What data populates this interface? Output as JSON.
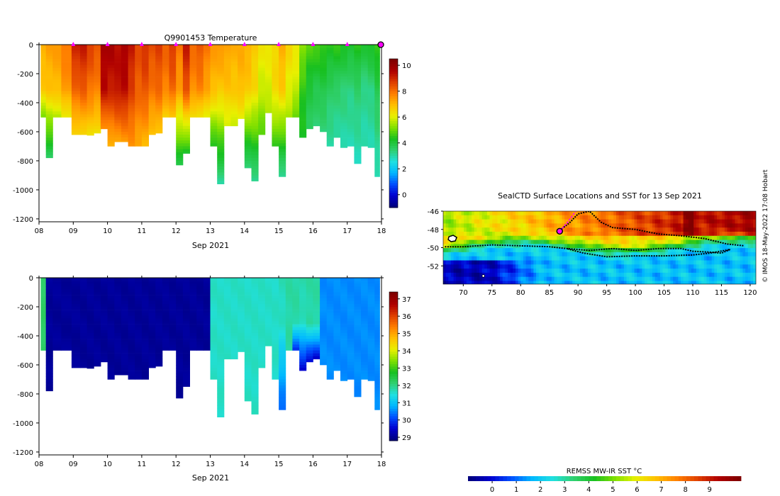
{
  "page": {
    "credit": "© IMOS 18-May-2022 17:08 Hobart"
  },
  "colors": {
    "jet": [
      "#00007f",
      "#0000d0",
      "#0050ff",
      "#00b8ff",
      "#20e0e0",
      "#30d070",
      "#18c020",
      "#80e000",
      "#e8f000",
      "#ffc000",
      "#ff8000",
      "#e04000",
      "#b00000",
      "#800000"
    ],
    "highlight": "#ff00ff",
    "land": "#ffffff"
  },
  "chart_data": [
    {
      "id": "temperature",
      "type": "heatmap",
      "title": "Q9901453  Temperature",
      "xlabel": "Sep 2021",
      "ylabel": "",
      "x_ticks": [
        "08",
        "09",
        "10",
        "11",
        "12",
        "13",
        "14",
        "15",
        "16",
        "17",
        "18"
      ],
      "y_ticks": [
        "0",
        "-200",
        "-400",
        "-600",
        "-800",
        "-1000",
        "-1200"
      ],
      "xlim": [
        8,
        18
      ],
      "ylim": [
        -1220,
        0
      ],
      "colorbar": {
        "ticks": [
          "0",
          "2",
          "4",
          "6",
          "8",
          "10"
        ],
        "range": [
          -1,
          10.5
        ]
      },
      "profile_markers_days": [
        9,
        10,
        11,
        12,
        13,
        14,
        15,
        16,
        17
      ],
      "current_marker_day": 18,
      "profiles": [
        {
          "day": 8.1,
          "bottom": -500,
          "surf": 7.2,
          "mid": 6.8,
          "deep": 5
        },
        {
          "day": 8.3,
          "bottom": -780,
          "surf": 7.4,
          "mid": 6.9,
          "deep": 3.5
        },
        {
          "day": 8.5,
          "bottom": -500,
          "surf": 7.5,
          "mid": 7,
          "deep": 5.5
        },
        {
          "day": 8.8,
          "bottom": -500,
          "surf": 8,
          "mid": 7.5,
          "deep": 6
        },
        {
          "day": 9.1,
          "bottom": -620,
          "surf": 9.2,
          "mid": 8.2,
          "deep": 6.5
        },
        {
          "day": 9.3,
          "bottom": -620,
          "surf": 9.3,
          "mid": 8.4,
          "deep": 6.5
        },
        {
          "day": 9.5,
          "bottom": -625,
          "surf": 8.8,
          "mid": 8,
          "deep": 6.4
        },
        {
          "day": 9.7,
          "bottom": -610,
          "surf": 8.5,
          "mid": 7.8,
          "deep": 6.3
        },
        {
          "day": 9.9,
          "bottom": -580,
          "surf": 9.8,
          "mid": 9.5,
          "deep": 7.5
        },
        {
          "day": 10.1,
          "bottom": -700,
          "surf": 9.8,
          "mid": 9.2,
          "deep": 7
        },
        {
          "day": 10.3,
          "bottom": -670,
          "surf": 9.5,
          "mid": 9.4,
          "deep": 7.3
        },
        {
          "day": 10.5,
          "bottom": -670,
          "surf": 9.8,
          "mid": 9.5,
          "deep": 7.4
        },
        {
          "day": 10.7,
          "bottom": -700,
          "surf": 9.3,
          "mid": 8.8,
          "deep": 7.5
        },
        {
          "day": 10.9,
          "bottom": -700,
          "surf": 8.6,
          "mid": 8.3,
          "deep": 7.2
        },
        {
          "day": 11.1,
          "bottom": -700,
          "surf": 9,
          "mid": 8.5,
          "deep": 7
        },
        {
          "day": 11.3,
          "bottom": -620,
          "surf": 8.6,
          "mid": 8,
          "deep": 6.8
        },
        {
          "day": 11.5,
          "bottom": -610,
          "surf": 8.8,
          "mid": 8.2,
          "deep": 6.8
        },
        {
          "day": 11.7,
          "bottom": -500,
          "surf": 8.3,
          "mid": 7.8,
          "deep": 6.5
        },
        {
          "day": 11.9,
          "bottom": -500,
          "surf": 8.9,
          "mid": 8.2,
          "deep": 6.7
        },
        {
          "day": 12.1,
          "bottom": -830,
          "surf": 8,
          "mid": 7.4,
          "deep": 3.8
        },
        {
          "day": 12.3,
          "bottom": -750,
          "surf": 9.3,
          "mid": 8.5,
          "deep": 4
        },
        {
          "day": 12.5,
          "bottom": -500,
          "surf": 8.2,
          "mid": 7.6,
          "deep": 6.3
        },
        {
          "day": 12.7,
          "bottom": -500,
          "surf": 8.5,
          "mid": 7.8,
          "deep": 6.2
        },
        {
          "day": 12.9,
          "bottom": -500,
          "surf": 8,
          "mid": 7.3,
          "deep": 6.1
        },
        {
          "day": 13.1,
          "bottom": -700,
          "surf": 7.5,
          "mid": 7,
          "deep": 4.2
        },
        {
          "day": 13.3,
          "bottom": -960,
          "surf": 7.6,
          "mid": 6.8,
          "deep": 3
        },
        {
          "day": 13.5,
          "bottom": -560,
          "surf": 7.4,
          "mid": 6.9,
          "deep": 5.8
        },
        {
          "day": 13.7,
          "bottom": -560,
          "surf": 7.2,
          "mid": 6.8,
          "deep": 5.8
        },
        {
          "day": 13.9,
          "bottom": -510,
          "surf": 7.3,
          "mid": 7,
          "deep": 6
        },
        {
          "day": 14.1,
          "bottom": -850,
          "surf": 7.2,
          "mid": 6.8,
          "deep": 3.2
        },
        {
          "day": 14.3,
          "bottom": -940,
          "surf": 6.8,
          "mid": 6.5,
          "deep": 3
        },
        {
          "day": 14.5,
          "bottom": -620,
          "surf": 6.3,
          "mid": 5.8,
          "deep": 4.8
        },
        {
          "day": 14.7,
          "bottom": -470,
          "surf": 6.3,
          "mid": 5.9,
          "deep": 5.4
        },
        {
          "day": 14.9,
          "bottom": -700,
          "surf": 6.6,
          "mid": 6.5,
          "deep": 4.5
        },
        {
          "day": 15.1,
          "bottom": -910,
          "surf": 7.2,
          "mid": 6.8,
          "deep": 3
        },
        {
          "day": 15.3,
          "bottom": -500,
          "surf": 6.6,
          "mid": 6,
          "deep": 5.5
        },
        {
          "day": 15.5,
          "bottom": -500,
          "surf": 6.3,
          "mid": 5.8,
          "deep": 4.8
        },
        {
          "day": 15.7,
          "bottom": -640,
          "surf": 5.3,
          "mid": 4.5,
          "deep": 4.2
        },
        {
          "day": 15.9,
          "bottom": -580,
          "surf": 4.8,
          "mid": 4,
          "deep": 3.6
        },
        {
          "day": 16.1,
          "bottom": -560,
          "surf": 4.7,
          "mid": 3.8,
          "deep": 3.4
        },
        {
          "day": 16.3,
          "bottom": -600,
          "surf": 4.6,
          "mid": 3.9,
          "deep": 3.3
        },
        {
          "day": 16.5,
          "bottom": -700,
          "surf": 4.4,
          "mid": 3.6,
          "deep": 3
        },
        {
          "day": 16.7,
          "bottom": -640,
          "surf": 4.5,
          "mid": 3.5,
          "deep": 3
        },
        {
          "day": 16.9,
          "bottom": -710,
          "surf": 4.3,
          "mid": 3.4,
          "deep": 2.9
        },
        {
          "day": 17.1,
          "bottom": -700,
          "surf": 4.2,
          "mid": 3.3,
          "deep": 2.9
        },
        {
          "day": 17.3,
          "bottom": -820,
          "surf": 4.4,
          "mid": 3.5,
          "deep": 2.8
        },
        {
          "day": 17.5,
          "bottom": -700,
          "surf": 4.1,
          "mid": 3.2,
          "deep": 2.9
        },
        {
          "day": 17.7,
          "bottom": -710,
          "surf": 4.3,
          "mid": 3.3,
          "deep": 2.9
        },
        {
          "day": 17.9,
          "bottom": -910,
          "surf": 4.6,
          "mid": 3.8,
          "deep": 2.8
        }
      ]
    },
    {
      "id": "salinity",
      "type": "heatmap",
      "title": "",
      "xlabel": "Sep 2021",
      "ylabel": "",
      "x_ticks": [
        "08",
        "09",
        "10",
        "11",
        "12",
        "13",
        "14",
        "15",
        "16",
        "17",
        "18"
      ],
      "y_ticks": [
        "0",
        "-200",
        "-400",
        "-600",
        "-800",
        "-1000",
        "-1200"
      ],
      "xlim": [
        8,
        18
      ],
      "ylim": [
        -1220,
        0
      ],
      "colorbar": {
        "ticks": [
          "29",
          "30",
          "31",
          "32",
          "33",
          "34",
          "35",
          "36",
          "37"
        ],
        "range": [
          28.8,
          37.4
        ]
      },
      "profiles": [
        {
          "day": 8.1,
          "bottom": -500,
          "surf": 32.2,
          "mid": 32.2,
          "deep": 32.2
        },
        {
          "day": 8.3,
          "bottom": -780,
          "surf": 29,
          "mid": 29,
          "deep": 29
        },
        {
          "day": 8.5,
          "bottom": -500,
          "surf": 29,
          "mid": 29,
          "deep": 29
        },
        {
          "day": 8.8,
          "bottom": -500,
          "surf": 29,
          "mid": 29,
          "deep": 29
        },
        {
          "day": 9.1,
          "bottom": -620,
          "surf": 29,
          "mid": 29,
          "deep": 29
        },
        {
          "day": 9.3,
          "bottom": -620,
          "surf": 29,
          "mid": 29,
          "deep": 29
        },
        {
          "day": 9.5,
          "bottom": -625,
          "surf": 29,
          "mid": 29,
          "deep": 29
        },
        {
          "day": 9.7,
          "bottom": -610,
          "surf": 29,
          "mid": 29,
          "deep": 29
        },
        {
          "day": 9.9,
          "bottom": -580,
          "surf": 29,
          "mid": 29,
          "deep": 29
        },
        {
          "day": 10.1,
          "bottom": -700,
          "surf": 29,
          "mid": 29,
          "deep": 29
        },
        {
          "day": 10.3,
          "bottom": -670,
          "surf": 29,
          "mid": 29,
          "deep": 29
        },
        {
          "day": 10.5,
          "bottom": -670,
          "surf": 29,
          "mid": 29,
          "deep": 29
        },
        {
          "day": 10.7,
          "bottom": -700,
          "surf": 29,
          "mid": 29,
          "deep": 29
        },
        {
          "day": 10.9,
          "bottom": -700,
          "surf": 29,
          "mid": 29,
          "deep": 29
        },
        {
          "day": 11.1,
          "bottom": -700,
          "surf": 29,
          "mid": 29,
          "deep": 29
        },
        {
          "day": 11.3,
          "bottom": -620,
          "surf": 29,
          "mid": 29,
          "deep": 29
        },
        {
          "day": 11.5,
          "bottom": -610,
          "surf": 29,
          "mid": 29,
          "deep": 29
        },
        {
          "day": 11.7,
          "bottom": -500,
          "surf": 29,
          "mid": 29,
          "deep": 29
        },
        {
          "day": 11.9,
          "bottom": -500,
          "surf": 29,
          "mid": 29,
          "deep": 29
        },
        {
          "day": 12.1,
          "bottom": -830,
          "surf": 29,
          "mid": 29,
          "deep": 29
        },
        {
          "day": 12.3,
          "bottom": -750,
          "surf": 29,
          "mid": 29,
          "deep": 29
        },
        {
          "day": 12.5,
          "bottom": -500,
          "surf": 29,
          "mid": 29,
          "deep": 29
        },
        {
          "day": 12.7,
          "bottom": -500,
          "surf": 29,
          "mid": 29,
          "deep": 29
        },
        {
          "day": 12.9,
          "bottom": -500,
          "surf": 29,
          "mid": 29,
          "deep": 29
        },
        {
          "day": 13.1,
          "bottom": -700,
          "surf": 31.6,
          "mid": 31.6,
          "deep": 31.6
        },
        {
          "day": 13.3,
          "bottom": -960,
          "surf": 31.6,
          "mid": 31.6,
          "deep": 31.6
        },
        {
          "day": 13.5,
          "bottom": -560,
          "surf": 31.6,
          "mid": 31.6,
          "deep": 31.6
        },
        {
          "day": 13.7,
          "bottom": -560,
          "surf": 31.6,
          "mid": 31.6,
          "deep": 31.6
        },
        {
          "day": 13.9,
          "bottom": -510,
          "surf": 31.6,
          "mid": 31.6,
          "deep": 31.6
        },
        {
          "day": 14.1,
          "bottom": -850,
          "surf": 31.6,
          "mid": 31.6,
          "deep": 31.6
        },
        {
          "day": 14.3,
          "bottom": -940,
          "surf": 31.6,
          "mid": 31.6,
          "deep": 31.6
        },
        {
          "day": 14.5,
          "bottom": -620,
          "surf": 31.6,
          "mid": 31.6,
          "deep": 31.6
        },
        {
          "day": 14.7,
          "bottom": -470,
          "surf": 31.6,
          "mid": 31.6,
          "deep": 31.6
        },
        {
          "day": 14.9,
          "bottom": -700,
          "surf": 31.6,
          "mid": 31.6,
          "deep": 31.6
        },
        {
          "day": 15.1,
          "bottom": -910,
          "surf": 31.7,
          "mid": 31.6,
          "deep": 30.2
        },
        {
          "day": 15.3,
          "bottom": -500,
          "surf": 31.8,
          "mid": 31.8,
          "deep": 31.8
        },
        {
          "day": 15.5,
          "bottom": -500,
          "surf": 31.8,
          "mid": 31.8,
          "deep": 29.6
        },
        {
          "day": 15.7,
          "bottom": -640,
          "surf": 31.8,
          "mid": 31.6,
          "deep": 29.3
        },
        {
          "day": 15.9,
          "bottom": -580,
          "surf": 31.8,
          "mid": 31.8,
          "deep": 29.4
        },
        {
          "day": 16.1,
          "bottom": -560,
          "surf": 31.8,
          "mid": 31.8,
          "deep": 29.3
        },
        {
          "day": 16.3,
          "bottom": -600,
          "surf": 30.5,
          "mid": 30.5,
          "deep": 30.5
        },
        {
          "day": 16.5,
          "bottom": -700,
          "surf": 30.5,
          "mid": 30.5,
          "deep": 30.5
        },
        {
          "day": 16.7,
          "bottom": -640,
          "surf": 30.5,
          "mid": 30.5,
          "deep": 30.5
        },
        {
          "day": 16.9,
          "bottom": -710,
          "surf": 30.5,
          "mid": 30.5,
          "deep": 30.5
        },
        {
          "day": 17.1,
          "bottom": -700,
          "surf": 30.5,
          "mid": 30.5,
          "deep": 30.5
        },
        {
          "day": 17.3,
          "bottom": -820,
          "surf": 30.5,
          "mid": 30.5,
          "deep": 30.5
        },
        {
          "day": 17.5,
          "bottom": -700,
          "surf": 30.5,
          "mid": 30.5,
          "deep": 30.5
        },
        {
          "day": 17.7,
          "bottom": -710,
          "surf": 30.5,
          "mid": 30.5,
          "deep": 30.5
        },
        {
          "day": 17.9,
          "bottom": -910,
          "surf": 30.5,
          "mid": 30.5,
          "deep": 30.5
        }
      ]
    },
    {
      "id": "sst-map",
      "type": "heatmap",
      "title": "SealCTD Surface Locations and SST for 13 Sep 2021",
      "xlabel": "",
      "ylabel": "",
      "x_ticks": [
        "70",
        "75",
        "80",
        "85",
        "90",
        "95",
        "100",
        "105",
        "110",
        "115",
        "120"
      ],
      "y_ticks": [
        "-46",
        "-48",
        "-50",
        "-52"
      ],
      "xlim": [
        66.5,
        121
      ],
      "ylim": [
        -54,
        -46
      ],
      "colorbar": {
        "label": "REMSS MW-IR SST °C",
        "ticks": [
          "0",
          "1",
          "2",
          "3",
          "4",
          "5",
          "6",
          "7",
          "8",
          "9"
        ],
        "range": [
          -1,
          10.3
        ]
      },
      "track": [
        [
          66.8,
          -49.9
        ],
        [
          70,
          -49.9
        ],
        [
          75,
          -49.7
        ],
        [
          80,
          -49.8
        ],
        [
          85,
          -49.9
        ],
        [
          88,
          -50.1
        ],
        [
          92,
          -50.3
        ],
        [
          96,
          -50.1
        ],
        [
          100,
          -50.3
        ],
        [
          104,
          -50.1
        ],
        [
          108,
          -50.1
        ],
        [
          110,
          -50.4
        ],
        [
          113,
          -50.5
        ],
        [
          115,
          -50.6
        ],
        [
          116.5,
          -50.2
        ],
        [
          113,
          -50.6
        ],
        [
          110,
          -50.8
        ],
        [
          105,
          -50.9
        ],
        [
          100,
          -50.9
        ],
        [
          95,
          -51
        ],
        [
          91,
          -50.6
        ],
        [
          88,
          -50.1
        ]
      ],
      "track2": [
        [
          86.8,
          -48.1
        ],
        [
          88.5,
          -47.3
        ],
        [
          90,
          -46.3
        ],
        [
          92,
          -46
        ],
        [
          94,
          -47.2
        ],
        [
          96,
          -47.8
        ],
        [
          100,
          -48
        ],
        [
          104,
          -48.5
        ],
        [
          108,
          -48.7
        ],
        [
          112,
          -49
        ],
        [
          116,
          -49.6
        ],
        [
          119,
          -49.8
        ]
      ],
      "current_position": [
        86.8,
        -48.2
      ],
      "recent_track": [
        [
          86.8,
          -48.2
        ],
        [
          88.2,
          -47.2
        ],
        [
          89.6,
          -46
        ]
      ]
    }
  ]
}
